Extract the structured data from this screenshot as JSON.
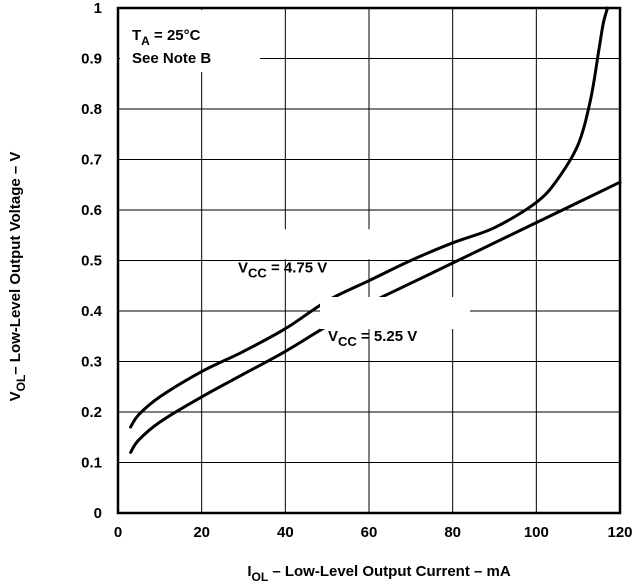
{
  "chart_data": {
    "type": "line",
    "xlabel_main": "I",
    "xlabel_sub": "OL",
    "xlabel_rest": " – Low-Level Output Current – mA",
    "ylabel_main": "V",
    "ylabel_sub": "OL",
    "ylabel_rest": "– Low-Level Output Voltage – V",
    "xlim": [
      0,
      120
    ],
    "ylim": [
      0,
      1
    ],
    "x_ticks": [
      "0",
      "20",
      "40",
      "60",
      "80",
      "100",
      "120"
    ],
    "y_ticks": [
      "0",
      "0.1",
      "0.2",
      "0.3",
      "0.4",
      "0.5",
      "0.6",
      "0.7",
      "0.8",
      "0.9",
      "1"
    ],
    "grid": true,
    "annotations": {
      "ta_main": "T",
      "ta_sub": "A",
      "ta_rest": " = 25°C",
      "note": "See Note B"
    },
    "series": [
      {
        "name_main": "V",
        "name_sub": "CC",
        "name_rest": " = 4.75 V",
        "x": [
          3,
          5,
          10,
          20,
          30,
          40,
          50,
          60,
          70,
          80,
          90,
          100,
          105,
          110,
          113,
          115,
          116,
          117
        ],
        "y": [
          0.17,
          0.195,
          0.23,
          0.28,
          0.32,
          0.365,
          0.42,
          0.46,
          0.5,
          0.535,
          0.565,
          0.615,
          0.66,
          0.73,
          0.82,
          0.92,
          0.97,
          1.0
        ]
      },
      {
        "name_main": "V",
        "name_sub": "CC",
        "name_rest": " = 5.25 V",
        "x": [
          3,
          5,
          10,
          20,
          30,
          40,
          50,
          60,
          70,
          80,
          90,
          100,
          110,
          120
        ],
        "y": [
          0.12,
          0.145,
          0.18,
          0.23,
          0.275,
          0.32,
          0.37,
          0.415,
          0.455,
          0.495,
          0.535,
          0.575,
          0.615,
          0.655
        ]
      }
    ]
  }
}
